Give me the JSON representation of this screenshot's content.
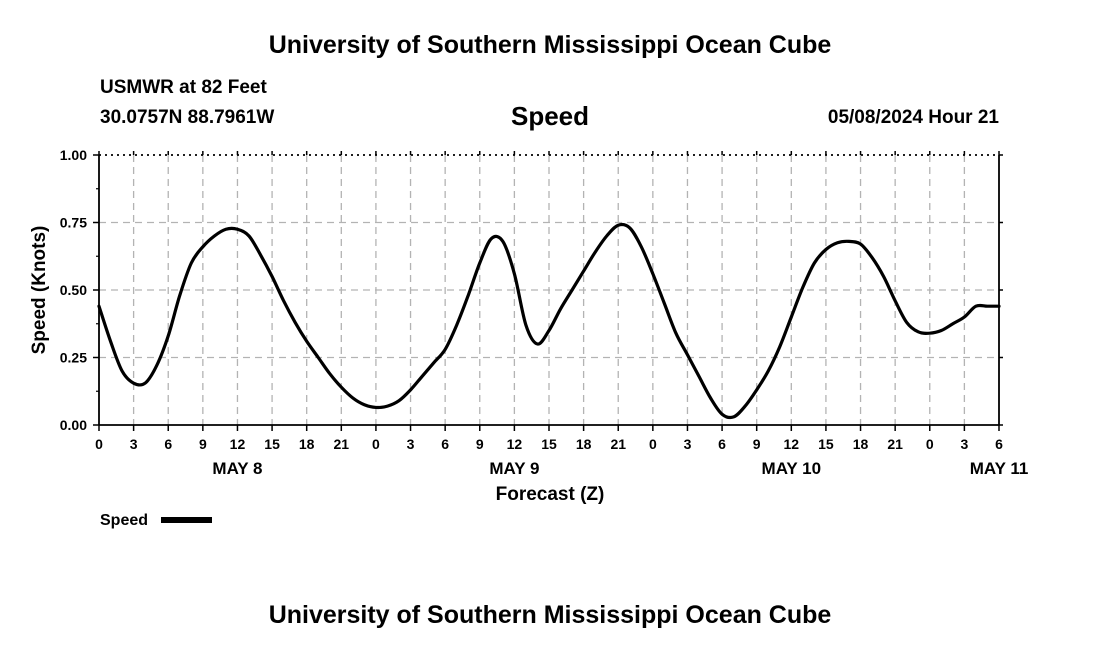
{
  "header": {
    "title": "University of Southern Mississippi Ocean Cube",
    "station": "USMWR at 82 Feet",
    "coords": "30.0757N  88.7961W",
    "variable": "Speed",
    "run_time": "05/08/2024 Hour 21"
  },
  "footer": {
    "title": "University of Southern Mississippi Ocean Cube"
  },
  "legend": {
    "label": "Speed",
    "color": "#000000"
  },
  "chart_data": {
    "type": "line",
    "title": "Speed",
    "xlabel": "Forecast (Z)",
    "ylabel": "Speed (Knots)",
    "xlim": [
      0,
      78
    ],
    "ylim": [
      0,
      1.0
    ],
    "grid": true,
    "legend_position": "bottom-left",
    "y_ticks": [
      0,
      0.25,
      0.5,
      0.75,
      1.0
    ],
    "y_tick_labels": [
      "0.00",
      "0.25",
      "0.50",
      "0.75",
      "1.00"
    ],
    "x_ticks": [
      0,
      3,
      6,
      9,
      12,
      15,
      18,
      21,
      24,
      27,
      30,
      33,
      36,
      39,
      42,
      45,
      48,
      51,
      54,
      57,
      60,
      63,
      66,
      69,
      72,
      75,
      78
    ],
    "x_tick_labels": [
      "0",
      "3",
      "6",
      "9",
      "12",
      "15",
      "18",
      "21",
      "0",
      "3",
      "6",
      "9",
      "12",
      "15",
      "18",
      "21",
      "0",
      "3",
      "6",
      "9",
      "12",
      "15",
      "18",
      "21",
      "0",
      "3",
      "6"
    ],
    "date_labels": [
      {
        "x": 12,
        "label": "MAY 8"
      },
      {
        "x": 36,
        "label": "MAY 9"
      },
      {
        "x": 60,
        "label": "MAY 10"
      },
      {
        "x": 78,
        "label": "MAY 11"
      }
    ],
    "series": [
      {
        "name": "Speed",
        "x": [
          0,
          1,
          2,
          3,
          4,
          5,
          6,
          7,
          8,
          9,
          10,
          11,
          12,
          13,
          14,
          15,
          16,
          17,
          18,
          19,
          20,
          21,
          22,
          23,
          24,
          25,
          26,
          27,
          28,
          29,
          30,
          31,
          32,
          33,
          34,
          35,
          36,
          37,
          38,
          39,
          40,
          41,
          42,
          43,
          44,
          45,
          46,
          47,
          48,
          49,
          50,
          51,
          52,
          53,
          54,
          55,
          56,
          57,
          58,
          59,
          60,
          61,
          62,
          63,
          64,
          65,
          66,
          67,
          68,
          69,
          70,
          71,
          72,
          73,
          74,
          75,
          76,
          77,
          78
        ],
        "values": [
          0.44,
          0.31,
          0.2,
          0.155,
          0.155,
          0.22,
          0.33,
          0.48,
          0.6,
          0.66,
          0.7,
          0.725,
          0.725,
          0.7,
          0.63,
          0.55,
          0.46,
          0.38,
          0.31,
          0.25,
          0.19,
          0.14,
          0.1,
          0.075,
          0.065,
          0.07,
          0.09,
          0.13,
          0.18,
          0.23,
          0.28,
          0.37,
          0.48,
          0.6,
          0.69,
          0.68,
          0.56,
          0.37,
          0.3,
          0.35,
          0.43,
          0.5,
          0.57,
          0.64,
          0.7,
          0.74,
          0.73,
          0.66,
          0.56,
          0.45,
          0.34,
          0.26,
          0.18,
          0.1,
          0.04,
          0.03,
          0.07,
          0.13,
          0.2,
          0.29,
          0.4,
          0.51,
          0.6,
          0.65,
          0.675,
          0.68,
          0.67,
          0.62,
          0.55,
          0.46,
          0.38,
          0.345,
          0.34,
          0.35,
          0.375,
          0.4,
          0.44,
          0.44,
          0.44
        ]
      }
    ]
  }
}
